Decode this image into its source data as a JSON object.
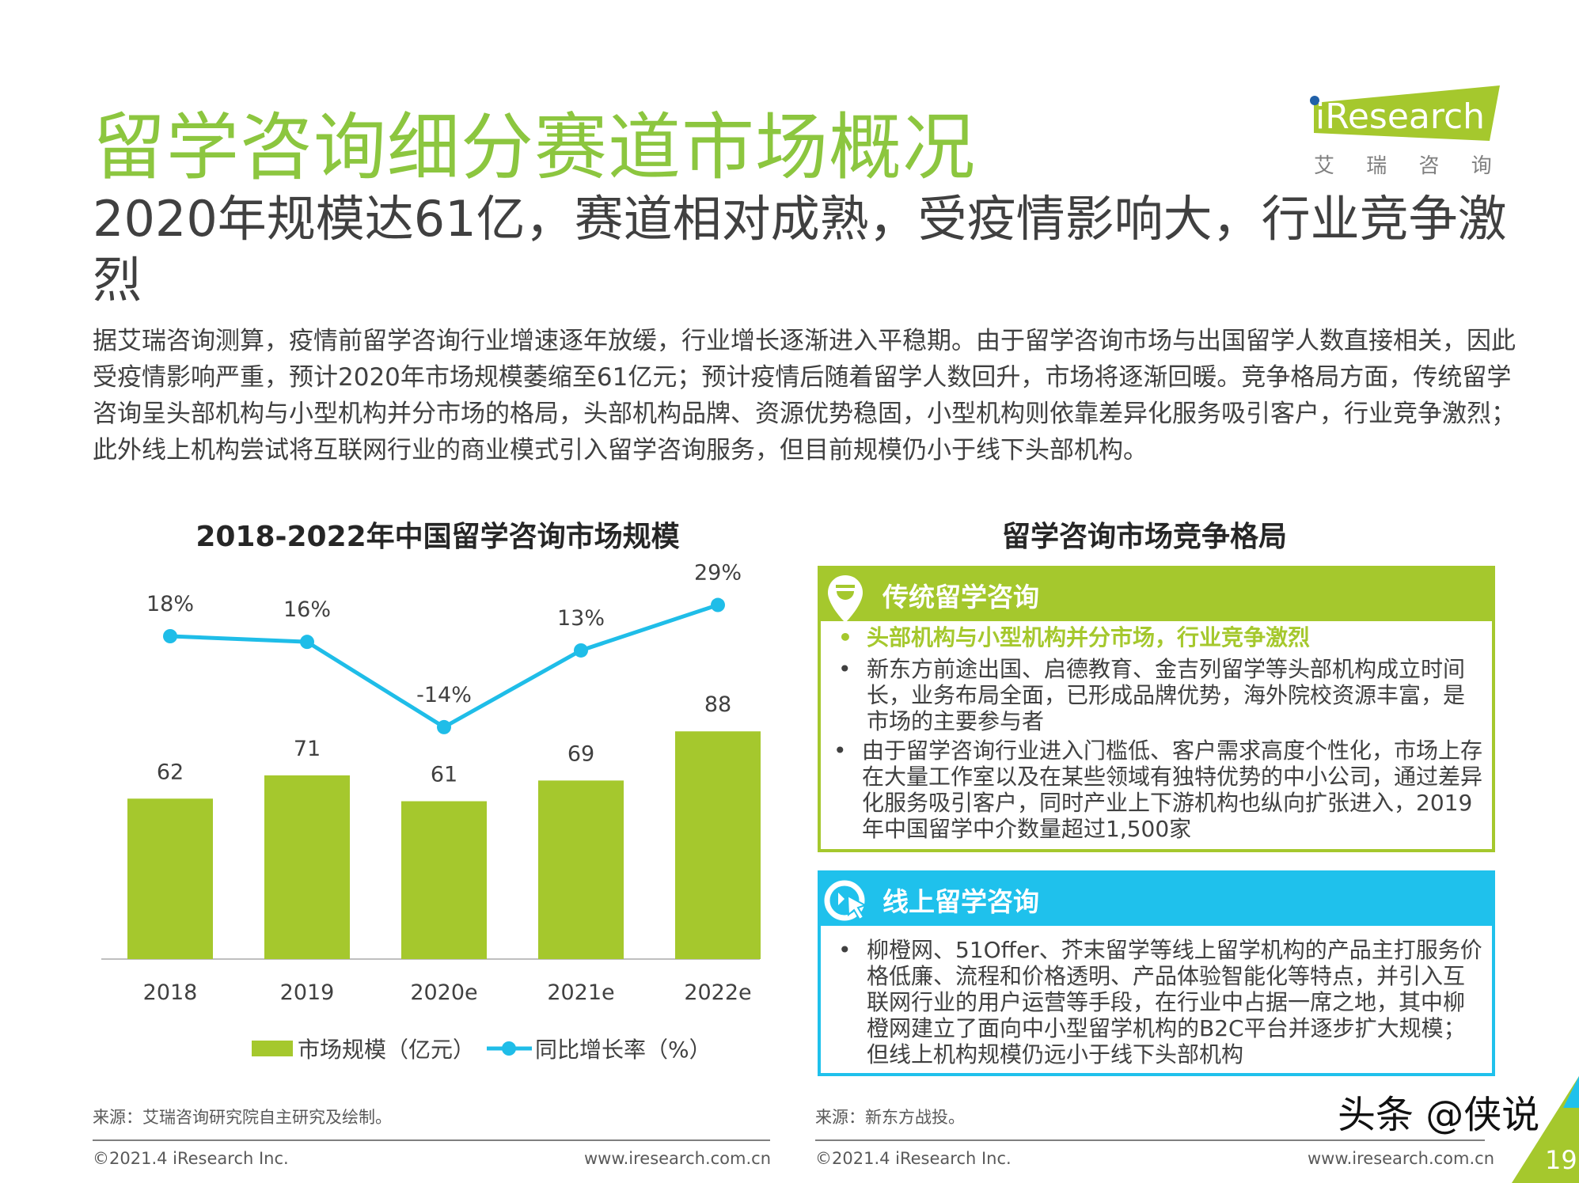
{
  "title": "留学咨询细分赛道市场概况",
  "subtitle": "2020年规模达61亿，赛道相对成熟，受疫情影响大，行业竞争激烈",
  "body": "据艾瑞咨询测算，疫情前留学咨询行业增速逐年放缓，行业增长逐渐进入平稳期。由于留学咨询市场与出国留学人数直接相关，因此受疫情影响严重，预计2020年市场规模萎缩至61亿元；预计疫情后随着留学人数回升，市场将逐渐回暖。竞争格局方面，传统留学咨询呈头部机构与小型机构并分市场的格局，头部机构品牌、资源优势稳固，小型机构则依靠差异化服务吸引客户，行业竞争激烈；此外线上机构尝试将互联网行业的商业模式引入留学咨询服务，但目前规模仍小于线下头部机构。",
  "logo": {
    "text": "iResearch",
    "cn": "艾 瑞 咨 询"
  },
  "chart_data": {
    "type": "bar+line",
    "title": "2018-2022年中国留学咨询市场规模",
    "categories": [
      "2018",
      "2019",
      "2020e",
      "2021e",
      "2022e"
    ],
    "series": [
      {
        "name": "市场规模（亿元）",
        "type": "bar",
        "values": [
          62,
          71,
          61,
          69,
          88
        ],
        "labels": [
          "62",
          "71",
          "61",
          "69",
          "88"
        ],
        "color": "#a5c82d"
      },
      {
        "name": "同比增长率（%）",
        "type": "line",
        "values": [
          18,
          16,
          -14,
          13,
          29
        ],
        "labels": [
          "18%",
          "16%",
          "-14%",
          "13%",
          "29%"
        ],
        "color": "#1fbde8"
      }
    ],
    "legend": "bottom"
  },
  "right": {
    "title": "留学咨询市场竞争格局",
    "traditional": {
      "header": "传统留学咨询",
      "color": "#a5c82d",
      "highlight": "头部机构与小型机构并分市场，行业竞争激烈",
      "bullets": [
        "新东方前途出国、启德教育、金吉列留学等头部机构成立时间长，业务布局全面，已形成品牌优势，海外院校资源丰富，是市场的主要参与者",
        "由于留学咨询行业进入门槛低、客户需求高度个性化，市场上存在大量工作室以及在某些领域有独特优势的中小公司，通过差异化服务吸引客户，同时产业上下游机构也纵向扩张进入，2019年中国留学中介数量超过1,500家"
      ]
    },
    "online": {
      "header": "线上留学咨询",
      "color": "#1fc1ec",
      "bullets": [
        "柳橙网、51Offer、芥末留学等线上留学机构的产品主打服务价格低廉、流程和价格透明、产品体验智能化等特点，并引入互联网行业的用户运营等手段，在行业中占据一席之地，其中柳橙网建立了面向中小型留学机构的B2C平台并逐步扩大规模；但线上机构规模仍远小于线下头部机构"
      ]
    }
  },
  "sources": {
    "left": "来源：艾瑞咨询研究院自主研究及绘制。",
    "right": "来源：新东方战投。"
  },
  "footer": {
    "copyright": "©2021.4 iResearch Inc.",
    "url": "www.iresearch.com.cn",
    "page": "19",
    "watermark": "头条 @侠说"
  }
}
